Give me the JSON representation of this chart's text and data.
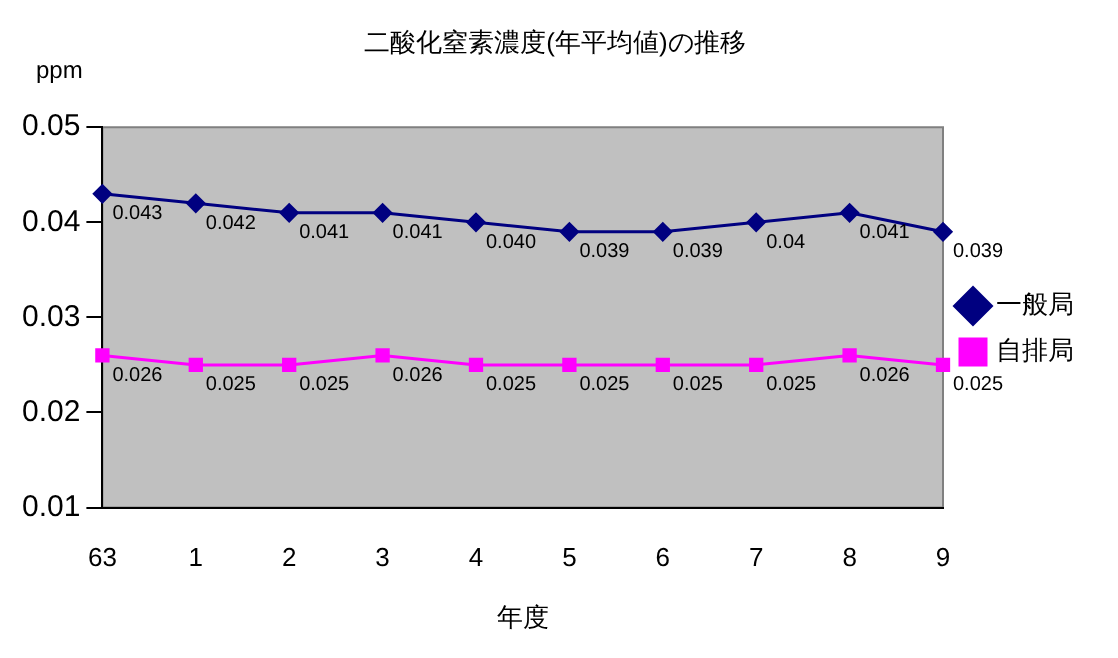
{
  "chart_data": {
    "type": "line",
    "title": "二酸化窒素濃度(年平均値)の推移",
    "xlabel": "年度",
    "ylabel": "ppm",
    "categories": [
      "63",
      "1",
      "2",
      "3",
      "4",
      "5",
      "6",
      "7",
      "8",
      "9"
    ],
    "series": [
      {
        "name": "一般局",
        "color": "#000080",
        "marker": "diamond",
        "values": [
          0.043,
          0.042,
          0.041,
          0.041,
          0.04,
          0.039,
          0.039,
          0.04,
          0.041,
          0.039
        ],
        "value_labels": [
          "0.043",
          "0.042",
          "0.041",
          "0.041",
          "0.040",
          "0.039",
          "0.039",
          "0.04",
          "0.041",
          "0.039"
        ]
      },
      {
        "name": "自排局",
        "color": "#ff00ff",
        "marker": "square",
        "values": [
          0.026,
          0.025,
          0.025,
          0.026,
          0.025,
          0.025,
          0.025,
          0.025,
          0.026,
          0.025
        ],
        "value_labels": [
          "0.026",
          "0.025",
          "0.025",
          "0.026",
          "0.025",
          "0.025",
          "0.025",
          "0.025",
          "0.026",
          "0.025"
        ]
      }
    ],
    "ylim": [
      0.01,
      0.05
    ],
    "yticks": [
      {
        "value": 0.01,
        "label": "0.01"
      },
      {
        "value": 0.02,
        "label": "0.02"
      },
      {
        "value": 0.03,
        "label": "0.03"
      },
      {
        "value": 0.04,
        "label": "0.04"
      },
      {
        "value": 0.05,
        "label": "0.05"
      }
    ],
    "grid": false,
    "legend": "right"
  }
}
